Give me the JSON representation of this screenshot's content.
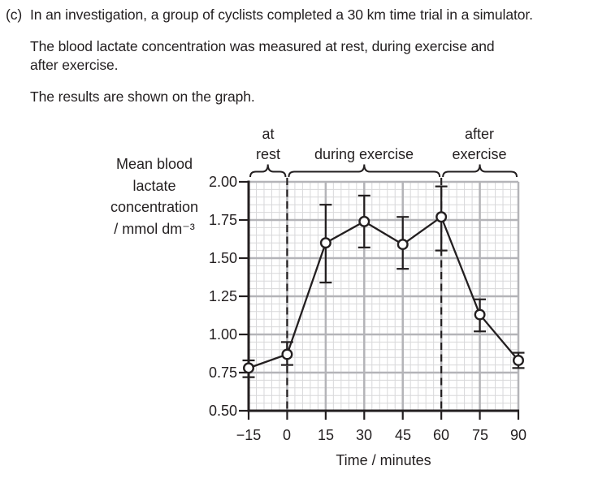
{
  "question": {
    "part_label": "(c)",
    "lines": [
      "In an investigation, a group of cyclists completed a 30 km time trial in a simulator.",
      "The blood lactate concentration was measured at rest, during exercise and",
      "after exercise.",
      "The results are shown on the graph."
    ]
  },
  "chart_data": {
    "type": "line",
    "title": "",
    "xlabel": "Time / minutes",
    "ylabel": "Mean blood lactate concentration / mmol dm⁻³",
    "ylabel_lines": [
      "Mean blood",
      "lactate",
      "concentration",
      "/ mmol dm⁻³"
    ],
    "x": [
      -15,
      0,
      15,
      30,
      45,
      60,
      75,
      90
    ],
    "series": [
      {
        "name": "mean blood lactate concentration",
        "values": [
          0.78,
          0.87,
          1.6,
          1.74,
          1.59,
          1.77,
          1.13,
          0.83
        ],
        "error_low": [
          0.72,
          0.8,
          1.34,
          1.57,
          1.43,
          1.55,
          1.02,
          0.78
        ],
        "error_high": [
          0.83,
          0.95,
          1.85,
          1.91,
          1.77,
          1.97,
          1.23,
          0.88
        ]
      }
    ],
    "x_ticks": [
      "−15",
      "0",
      "15",
      "30",
      "45",
      "60",
      "75",
      "90"
    ],
    "y_ticks": [
      "2.00",
      "1.75",
      "1.50",
      "1.25",
      "1.00",
      "0.75",
      "0.50"
    ],
    "xlim": [
      -15,
      90
    ],
    "ylim": [
      0.5,
      2.0
    ],
    "grid": true,
    "minor_step_x": 3,
    "minor_step_y": 0.05,
    "marker": "open-circle",
    "error_bars": true,
    "dashed_lines_at": [
      0,
      60
    ],
    "phases": [
      {
        "lines": [
          "at",
          "rest"
        ],
        "from": -15,
        "to": 0
      },
      {
        "lines": [
          "during exercise"
        ],
        "from": 0,
        "to": 60
      },
      {
        "lines": [
          "after",
          "exercise"
        ],
        "from": 60,
        "to": 90
      }
    ],
    "legend": "none"
  },
  "colors": {
    "ink": "#231f20",
    "grid_minor": "#d8d8da",
    "grid_major": "#b4b4b8",
    "background": "#ffffff"
  }
}
